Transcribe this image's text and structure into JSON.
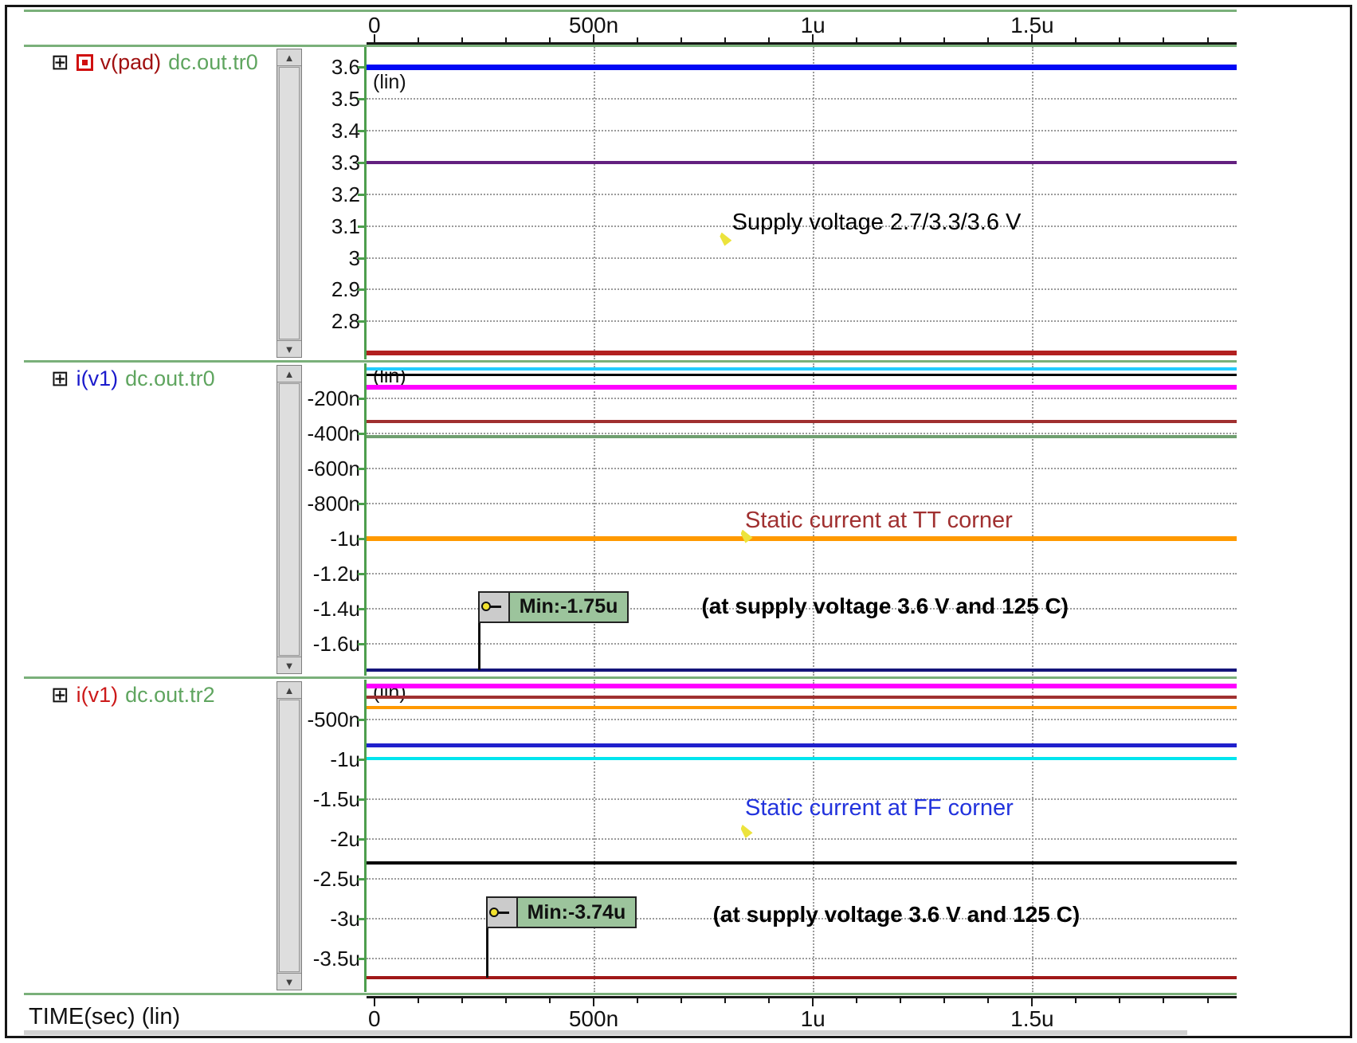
{
  "time_axis": {
    "major_labels": [
      "0",
      "500n",
      "1u",
      "1.5u"
    ],
    "start_pct": 0.9,
    "minor_step_pct": 5.04,
    "num_ticks": 20,
    "gridline_pcts": [
      26.1,
      51.3,
      76.5
    ],
    "bottom_label": "TIME(sec) (lin)"
  },
  "icons": {
    "expand": "⊞",
    "scroll_up": "▲",
    "scroll_down": "▼"
  },
  "chart_data": [
    {
      "type": "line",
      "panel": 1,
      "signal": "v(pad)",
      "dataset": "dc.out.tr0",
      "scale_label": "(lin)",
      "signal_color": "#a01010",
      "dataset_color": "#5fa55f",
      "has_marker_icon": true,
      "xlabel": "TIME(sec)",
      "x_ticks_labels": [
        "0",
        "500n",
        "1u",
        "1.5u"
      ],
      "y_unit": "V",
      "ylim": [
        2.68,
        3.664
      ],
      "y_ticks": [
        {
          "label": "3.6",
          "value": 3.6
        },
        {
          "label": "3.5",
          "value": 3.5
        },
        {
          "label": "3.4",
          "value": 3.4
        },
        {
          "label": "3.3",
          "value": 3.3
        },
        {
          "label": "3.2",
          "value": 3.2
        },
        {
          "label": "3.1",
          "value": 3.1
        },
        {
          "label": "3",
          "value": 3.0
        },
        {
          "label": "2.9",
          "value": 2.9
        },
        {
          "label": "2.8",
          "value": 2.8
        }
      ],
      "series": [
        {
          "value": 3.6,
          "color": "#0008f5",
          "width": 7
        },
        {
          "value": 3.3,
          "color": "#63207f",
          "width": 4
        },
        {
          "value": 2.7,
          "color": "#b22020",
          "width": 6
        }
      ],
      "annotations": [
        {
          "text": "Supply voltage 2.7/3.3/3.6 V",
          "color": "#000000",
          "bold": false,
          "x_pct": 42,
          "value": 3.11,
          "pointer": {
            "x_pct": 40.6,
            "value": 3.06
          }
        }
      ],
      "min_flag": null
    },
    {
      "type": "line",
      "panel": 2,
      "signal": "i(v1)",
      "dataset": "dc.out.tr0",
      "scale_label": "(lin)",
      "signal_color": "#1a1acc",
      "dataset_color": "#5fa55f",
      "has_marker_icon": false,
      "xlabel": "TIME(sec)",
      "x_ticks_labels": [
        "0",
        "500n",
        "1u",
        "1.5u"
      ],
      "y_unit": "uA",
      "ylim": [
        -1.782,
        0.0
      ],
      "y_ticks": [
        {
          "label": "-200n",
          "value": -0.2
        },
        {
          "label": "-400n",
          "value": -0.4
        },
        {
          "label": "-600n",
          "value": -0.6
        },
        {
          "label": "-800n",
          "value": -0.8
        },
        {
          "label": "-1u",
          "value": -1.0
        },
        {
          "label": "-1.2u",
          "value": -1.2
        },
        {
          "label": "-1.4u",
          "value": -1.4
        },
        {
          "label": "-1.6u",
          "value": -1.6
        }
      ],
      "series": [
        {
          "value": -0.03,
          "color": "#22ccff",
          "width": 4
        },
        {
          "value": -0.068,
          "color": "#000000",
          "width": 3
        },
        {
          "value": -0.135,
          "color": "#ff00ff",
          "width": 6
        },
        {
          "value": -0.33,
          "color": "#a03030",
          "width": 4
        },
        {
          "value": -0.42,
          "color": "#6f9f6f",
          "width": 4
        },
        {
          "value": -1.0,
          "color": "#ff9900",
          "width": 6
        },
        {
          "value": -1.75,
          "color": "#15157a",
          "width": 4
        }
      ],
      "annotations": [
        {
          "text": "Static current at TT corner",
          "color": "#a03030",
          "bold": false,
          "x_pct": 43.5,
          "value": -0.9,
          "pointer": {
            "x_pct": 43.0,
            "value": -0.985
          }
        },
        {
          "text": "(at supply voltage 3.6 V and 125 C)",
          "color": "#000000",
          "bold": true,
          "x_pct": 38.5,
          "value": -1.39
        }
      ],
      "min_flag": {
        "label": "Min:-1.75u",
        "x_pct": 12.8,
        "box_top_value": -1.3,
        "min_value": -1.75
      }
    },
    {
      "type": "line",
      "panel": 3,
      "signal": "i(v1)",
      "dataset": "dc.out.tr2",
      "scale_label": "(lin)",
      "signal_color": "#cc1a1a",
      "dataset_color": "#5fa55f",
      "has_marker_icon": false,
      "xlabel": "TIME(sec)",
      "x_ticks_labels": [
        "0",
        "500n",
        "1u",
        "1.5u"
      ],
      "y_unit": "uA",
      "ylim": [
        -3.92,
        0.0
      ],
      "y_ticks": [
        {
          "label": "-500n",
          "value": -0.5
        },
        {
          "label": "-1u",
          "value": -1.0
        },
        {
          "label": "-1.5u",
          "value": -1.5
        },
        {
          "label": "-2u",
          "value": -2.0
        },
        {
          "label": "-2.5u",
          "value": -2.5
        },
        {
          "label": "-3u",
          "value": -3.0
        },
        {
          "label": "-3.5u",
          "value": -3.5
        }
      ],
      "series": [
        {
          "value": -0.08,
          "color": "#ff00ff",
          "width": 6
        },
        {
          "value": -0.22,
          "color": "#a03030",
          "width": 4
        },
        {
          "value": -0.35,
          "color": "#ff9900",
          "width": 4
        },
        {
          "value": -0.82,
          "color": "#2020cc",
          "width": 5
        },
        {
          "value": -0.99,
          "color": "#00e5ee",
          "width": 4
        },
        {
          "value": -2.3,
          "color": "#000000",
          "width": 4
        },
        {
          "value": -3.74,
          "color": "#a01818",
          "width": 4
        }
      ],
      "annotations": [
        {
          "text": "Static current at FF corner",
          "color": "#2233dd",
          "bold": false,
          "x_pct": 43.5,
          "value": -1.62,
          "pointer": {
            "x_pct": 43.0,
            "value": -1.9
          }
        },
        {
          "text": "(at supply voltage 3.6 V and 125 C)",
          "color": "#000000",
          "bold": true,
          "x_pct": 39.8,
          "value": -2.96
        }
      ],
      "min_flag": {
        "label": "Min:-3.74u",
        "x_pct": 13.7,
        "box_top_value": -2.72,
        "min_value": -3.74
      }
    }
  ]
}
